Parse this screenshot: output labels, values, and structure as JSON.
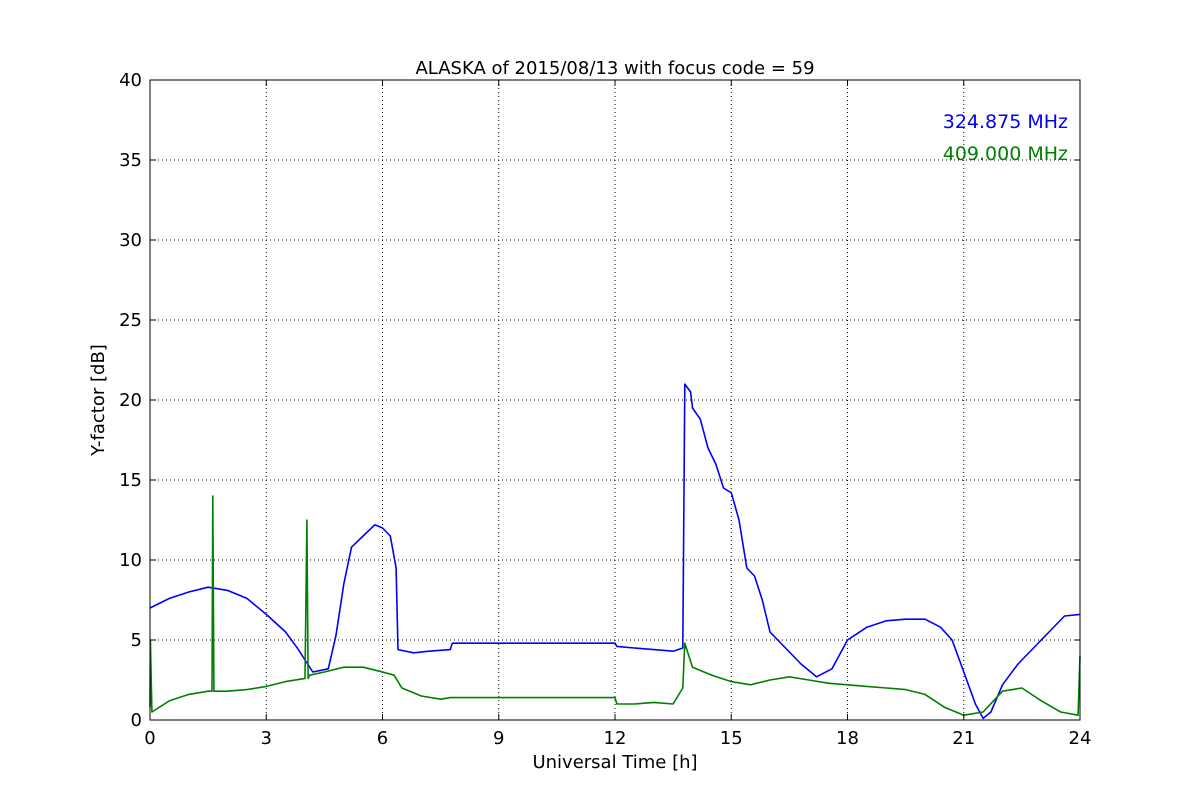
{
  "chart_data": {
    "type": "line",
    "title": "ALASKA of 2015/08/13 with focus code = 59",
    "xlabel": "Universal Time [h]",
    "ylabel": "Y-factor [dB]",
    "xlim": [
      0,
      24
    ],
    "ylim": [
      0,
      40
    ],
    "xticks": [
      0,
      3,
      6,
      9,
      12,
      15,
      18,
      21,
      24
    ],
    "yticks": [
      0,
      5,
      10,
      15,
      20,
      25,
      30,
      35,
      40
    ],
    "grid": true,
    "legend_position": "top-right",
    "series": [
      {
        "name": "324.875 MHz",
        "color": "#0000ff",
        "x": [
          0,
          0.5,
          1.0,
          1.5,
          2.0,
          2.5,
          3.0,
          3.5,
          3.8,
          4.2,
          4.6,
          4.8,
          5.0,
          5.2,
          5.5,
          5.8,
          6.0,
          6.2,
          6.35,
          6.4,
          6.8,
          7.2,
          7.75,
          7.8,
          12.0,
          12.05,
          12.5,
          13.0,
          13.5,
          13.75,
          13.8,
          13.95,
          14.0,
          14.2,
          14.4,
          14.6,
          14.8,
          15.0,
          15.2,
          15.4,
          15.6,
          15.8,
          16.0,
          16.4,
          16.8,
          17.2,
          17.6,
          18.0,
          18.5,
          19.0,
          19.5,
          20.0,
          20.4,
          20.7,
          21.0,
          21.3,
          21.5,
          21.7,
          22.0,
          22.4,
          22.8,
          23.2,
          23.6,
          24.0
        ],
        "y": [
          7.0,
          7.6,
          8.0,
          8.3,
          8.1,
          7.6,
          6.6,
          5.5,
          4.5,
          3.0,
          3.2,
          5.3,
          8.5,
          10.8,
          11.5,
          12.2,
          12.0,
          11.5,
          9.5,
          4.4,
          4.2,
          4.3,
          4.4,
          4.8,
          4.8,
          4.6,
          4.5,
          4.4,
          4.3,
          4.5,
          21.0,
          20.5,
          19.5,
          18.8,
          17.0,
          16.0,
          14.5,
          14.2,
          12.5,
          9.5,
          9.0,
          7.5,
          5.5,
          4.5,
          3.5,
          2.7,
          3.2,
          5.0,
          5.8,
          6.2,
          6.3,
          6.3,
          5.8,
          5.0,
          3.0,
          1.0,
          0.1,
          0.5,
          2.2,
          3.5,
          4.5,
          5.5,
          6.5,
          6.6
        ]
      },
      {
        "name": "409.000 MHz",
        "color": "#008000",
        "x": [
          0,
          0.01,
          0.05,
          0.5,
          1.0,
          1.5,
          1.6,
          1.62,
          1.65,
          2.0,
          2.5,
          3.0,
          3.5,
          4.0,
          4.05,
          4.08,
          4.12,
          4.5,
          5.0,
          5.5,
          6.0,
          6.3,
          6.5,
          7.0,
          7.5,
          7.75,
          7.8,
          12.0,
          12.05,
          12.5,
          13.0,
          13.5,
          13.75,
          13.8,
          14.0,
          14.5,
          15.0,
          15.5,
          16.0,
          16.5,
          17.0,
          17.5,
          18.0,
          18.5,
          19.0,
          19.5,
          20.0,
          20.5,
          21.0,
          21.5,
          22.0,
          22.5,
          23.0,
          23.5,
          23.95,
          24.0
        ],
        "y": [
          0.8,
          5.0,
          0.5,
          1.2,
          1.6,
          1.8,
          1.8,
          14.0,
          1.8,
          1.8,
          1.9,
          2.1,
          2.4,
          2.6,
          12.5,
          2.6,
          2.8,
          3.0,
          3.3,
          3.3,
          3.0,
          2.8,
          2.0,
          1.5,
          1.3,
          1.4,
          1.4,
          1.4,
          1.0,
          1.0,
          1.1,
          1.0,
          2.0,
          4.8,
          3.3,
          2.8,
          2.4,
          2.2,
          2.5,
          2.7,
          2.5,
          2.3,
          2.2,
          2.1,
          2.0,
          1.9,
          1.6,
          0.8,
          0.3,
          0.5,
          1.8,
          2.0,
          1.2,
          0.5,
          0.3,
          4.0
        ]
      }
    ]
  }
}
